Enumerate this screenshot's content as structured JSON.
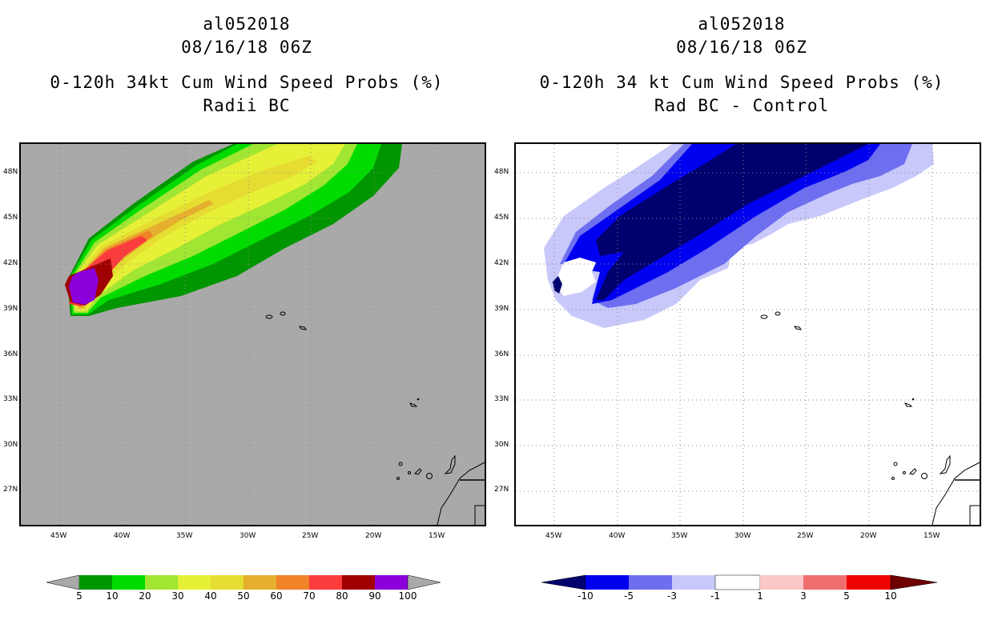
{
  "left_panel": {
    "storm_id": "al052018",
    "datetime": "08/16/18 06Z",
    "title": "0-120h 34kt Cum Wind Speed Probs (%)",
    "subtitle": "Radii BC",
    "background_color": "#a9a9a9",
    "colorbar": {
      "labels": [
        "5",
        "10",
        "20",
        "30",
        "40",
        "50",
        "60",
        "70",
        "80",
        "90",
        "100"
      ],
      "colors": [
        "#009600",
        "#00dc00",
        "#a0e632",
        "#e6f036",
        "#e6dc32",
        "#e6af2d",
        "#f08228",
        "#fa3c3c",
        "#a00000",
        "#8c00dc"
      ]
    }
  },
  "right_panel": {
    "storm_id": "al052018",
    "datetime": "08/16/18 06Z",
    "title": "0-120h 34 kt Cum Wind Speed Probs (%)",
    "subtitle": "Rad BC - Control",
    "background_color": "#ffffff",
    "colorbar": {
      "labels": [
        "-10",
        "-5",
        "-3",
        "-1",
        "1",
        "3",
        "5",
        "10"
      ],
      "colors": [
        "#00006e",
        "#0000f0",
        "#6e6ef0",
        "#c8c8fa",
        "#ffffff",
        "#fac8c8",
        "#f06e6e",
        "#f00000",
        "#6e0000"
      ]
    }
  },
  "lat_labels": [
    "48N",
    "45N",
    "42N",
    "39N",
    "36N",
    "33N",
    "30N",
    "27N"
  ],
  "lon_labels": [
    "45W",
    "40W",
    "35W",
    "30W",
    "25W",
    "20W",
    "15W"
  ]
}
